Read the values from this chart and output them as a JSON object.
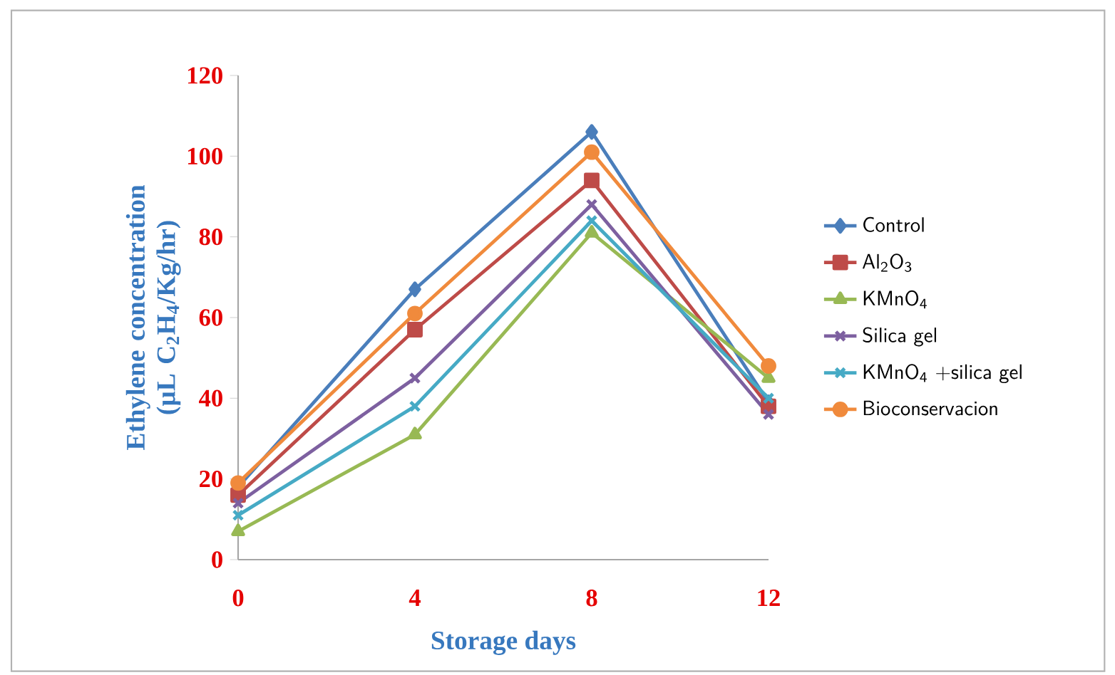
{
  "chart_data": {
    "type": "line",
    "xlabel": "Storage days",
    "ylabel": "Ethylene concentration (µL C$_{2}$H$_{4}$/Kg/hr)",
    "x": [
      0,
      4,
      8,
      12
    ],
    "xlim": [
      0,
      12
    ],
    "xticks": [
      0,
      4,
      8,
      12
    ],
    "ylim": [
      0,
      120
    ],
    "yticks": [
      0,
      20,
      40,
      60,
      80,
      100,
      120
    ],
    "grid": false,
    "legend": "right",
    "series": [
      {
        "name": "Control",
        "color": "#4a7ebb",
        "marker": "diamond",
        "values": [
          18,
          67,
          106,
          39
        ]
      },
      {
        "name": "Al$_{2}$O$_{3}$",
        "color": "#be4b48",
        "marker": "square",
        "values": [
          16,
          57,
          94,
          38
        ]
      },
      {
        "name": "KMnO$_{4}$",
        "color": "#98b954",
        "marker": "triangle",
        "values": [
          7,
          31,
          81,
          45
        ]
      },
      {
        "name": "Silica gel",
        "color": "#7d60a0",
        "marker": "cross",
        "values": [
          14,
          45,
          88,
          36
        ]
      },
      {
        "name": "KMnO$_{4}$ +silica gel",
        "color": "#46aac5",
        "marker": "cross",
        "values": [
          11,
          38,
          84,
          40
        ]
      },
      {
        "name": "Bioconservacion",
        "color": "#f08a3c",
        "marker": "circle",
        "values": [
          19,
          61,
          101,
          48
        ]
      }
    ]
  }
}
